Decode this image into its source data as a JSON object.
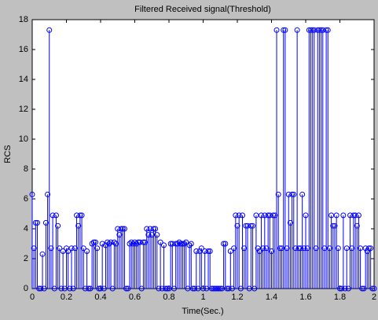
{
  "chart_data": {
    "type": "stem",
    "title": "Filtered Received signal(Threshold)",
    "xlabel": "Time(Sec.)",
    "ylabel": "RCS",
    "color": "#0000ff",
    "xlim": [
      0,
      2
    ],
    "xticks": [
      0,
      0.2,
      0.4,
      0.6,
      0.8,
      1,
      1.2,
      1.4,
      1.6,
      1.8,
      2
    ],
    "ylim": [
      0,
      18
    ],
    "yticks": [
      0,
      2,
      4,
      6,
      8,
      10,
      12,
      14,
      16,
      18
    ],
    "x": [
      0,
      0.01,
      0.02,
      0.03,
      0.04,
      0.05,
      0.06,
      0.07,
      0.08,
      0.09,
      0.1,
      0.11,
      0.12,
      0.13,
      0.14,
      0.15,
      0.16,
      0.17,
      0.18,
      0.19,
      0.2,
      0.21,
      0.22,
      0.23,
      0.24,
      0.25,
      0.26,
      0.27,
      0.28,
      0.29,
      0.3,
      0.31,
      0.32,
      0.33,
      0.34,
      0.35,
      0.36,
      0.37,
      0.38,
      0.39,
      0.4,
      0.41,
      0.42,
      0.43,
      0.44,
      0.45,
      0.46,
      0.47,
      0.48,
      0.49,
      0.5,
      0.51,
      0.52,
      0.53,
      0.54,
      0.55,
      0.56,
      0.57,
      0.58,
      0.59,
      0.6,
      0.61,
      0.62,
      0.63,
      0.64,
      0.65,
      0.66,
      0.67,
      0.68,
      0.69,
      0.7,
      0.71,
      0.72,
      0.73,
      0.74,
      0.75,
      0.76,
      0.77,
      0.78,
      0.79,
      0.8,
      0.81,
      0.82,
      0.83,
      0.84,
      0.85,
      0.86,
      0.87,
      0.88,
      0.89,
      0.9,
      0.91,
      0.92,
      0.93,
      0.94,
      0.95,
      0.96,
      0.97,
      0.98,
      0.99,
      1,
      1.01,
      1.02,
      1.03,
      1.04,
      1.05,
      1.06,
      1.07,
      1.08,
      1.09,
      1.1,
      1.11,
      1.12,
      1.13,
      1.14,
      1.15,
      1.16,
      1.17,
      1.18,
      1.19,
      1.2,
      1.21,
      1.22,
      1.23,
      1.24,
      1.25,
      1.26,
      1.27,
      1.28,
      1.29,
      1.3,
      1.31,
      1.32,
      1.33,
      1.34,
      1.35,
      1.36,
      1.37,
      1.38,
      1.39,
      1.4,
      1.41,
      1.42,
      1.43,
      1.44,
      1.45,
      1.46,
      1.47,
      1.48,
      1.49,
      1.5,
      1.51,
      1.52,
      1.53,
      1.54,
      1.55,
      1.56,
      1.57,
      1.58,
      1.59,
      1.6,
      1.61,
      1.62,
      1.63,
      1.64,
      1.65,
      1.66,
      1.67,
      1.68,
      1.69,
      1.7,
      1.71,
      1.72,
      1.73,
      1.74,
      1.75,
      1.76,
      1.77,
      1.78,
      1.79,
      1.8,
      1.81,
      1.82,
      1.83,
      1.84,
      1.85,
      1.86,
      1.87,
      1.88,
      1.89,
      1.9,
      1.91,
      1.92,
      1.93,
      1.94,
      1.95,
      1.96,
      1.97,
      1.98,
      1.99,
      2
    ],
    "values": [
      6.3,
      2.7,
      4.4,
      4.4,
      0,
      0,
      2.3,
      0,
      4.4,
      6.3,
      17.3,
      2.7,
      4.9,
      0,
      4.9,
      4.2,
      2.7,
      0,
      2.5,
      0,
      2.7,
      2.5,
      0,
      2.7,
      0,
      2.7,
      4.9,
      4.2,
      4.9,
      4.9,
      2.7,
      0,
      2.5,
      0,
      0,
      3.0,
      3.1,
      3.1,
      2.7,
      0,
      0,
      3.0,
      0,
      2.9,
      3.1,
      3.0,
      3.1,
      0,
      3.1,
      3.0,
      4.0,
      3.6,
      4.0,
      4.0,
      4.0,
      0,
      0,
      3.0,
      3.1,
      3.0,
      3.1,
      3.0,
      3.1,
      3.1,
      0,
      3.1,
      3.1,
      4.0,
      3.6,
      4.0,
      3.6,
      4.0,
      4.0,
      3.6,
      0,
      3.1,
      0,
      2.9,
      0,
      0,
      0,
      3.0,
      3.0,
      0,
      3.0,
      3.0,
      3.1,
      3.0,
      3.0,
      3.0,
      3.1,
      0,
      2.9,
      3.0,
      0,
      0,
      2.5,
      0,
      2.5,
      2.7,
      0,
      2.5,
      0,
      2.5,
      2.5,
      0,
      0,
      0,
      0,
      0,
      0,
      0,
      3.0,
      3.0,
      0,
      0,
      2.5,
      0,
      2.7,
      4.9,
      4.2,
      4.9,
      0,
      4.9,
      2.7,
      4.2,
      4.2,
      0,
      4.2,
      4.2,
      0,
      4.9,
      2.7,
      2.5,
      4.9,
      2.7,
      4.9,
      2.7,
      4.9,
      4.9,
      2.5,
      4.9,
      4.9,
      17.3,
      6.3,
      2.7,
      2.7,
      17.3,
      17.3,
      2.7,
      6.3,
      4.4,
      6.3,
      6.3,
      2.7,
      17.3,
      2.7,
      2.7,
      6.3,
      2.7,
      4.9,
      2.7,
      17.3,
      17.3,
      17.3,
      17.3,
      2.7,
      17.3,
      17.3,
      17.3,
      17.3,
      2.7,
      17.3,
      17.3,
      2.7,
      4.9,
      4.2,
      4.2,
      4.9,
      2.7,
      0,
      0,
      4.9,
      0,
      2.7,
      0,
      4.9,
      2.7,
      4.9,
      4.9,
      4.2,
      4.9,
      2.7,
      0,
      0,
      2.7,
      2.5,
      2.7,
      2.7,
      0,
      0
    ]
  }
}
